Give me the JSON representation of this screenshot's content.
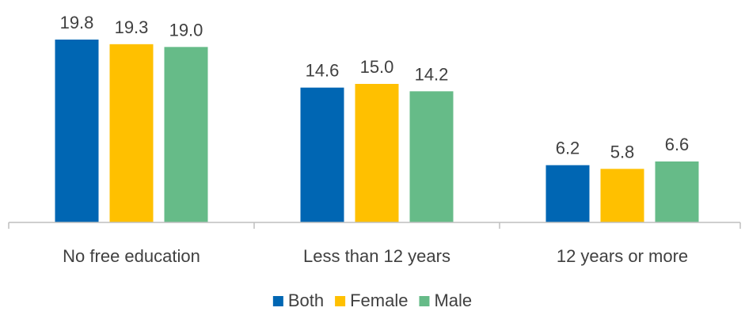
{
  "chart_data": {
    "type": "bar",
    "categories": [
      "No free education",
      "Less than 12 years",
      "12 years or more"
    ],
    "series": [
      {
        "name": "Both",
        "values": [
          19.8,
          14.6,
          6.2
        ],
        "color": "#0066b3"
      },
      {
        "name": "Female",
        "values": [
          19.3,
          15.0,
          5.8
        ],
        "color": "#ffc000"
      },
      {
        "name": "Male",
        "values": [
          19.0,
          14.2,
          6.6
        ],
        "color": "#66bb88"
      }
    ],
    "title": "",
    "xlabel": "",
    "ylabel": "",
    "ylim": [
      0,
      21
    ],
    "grid": false,
    "legend": "bottom",
    "data_labels": true
  }
}
